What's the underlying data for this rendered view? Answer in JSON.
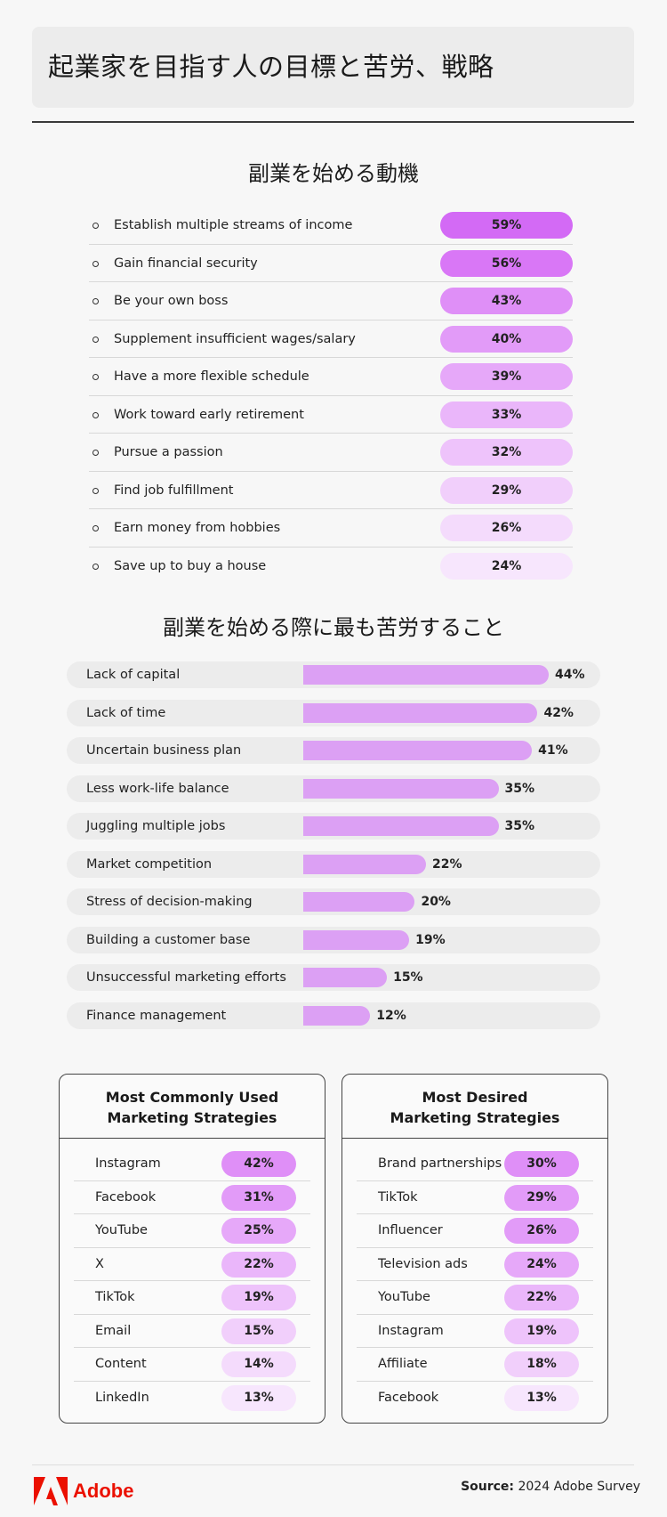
{
  "header": {
    "title": "起業家を目指す人の目標と苦労、戦略"
  },
  "motivations": {
    "title": "副業を始める動機",
    "items": [
      {
        "label": "Establish multiple streams of income",
        "value": "59%",
        "color": "#d36af5"
      },
      {
        "label": "Gain financial security",
        "value": "56%",
        "color": "#d977f6"
      },
      {
        "label": "Be your own boss",
        "value": "43%",
        "color": "#df8ff7"
      },
      {
        "label": "Supplement insufficient wages/salary",
        "value": "40%",
        "color": "#e29bf8"
      },
      {
        "label": "Have a more flexible schedule",
        "value": "39%",
        "color": "#e6a8f9"
      },
      {
        "label": "Work toward early retirement",
        "value": "33%",
        "color": "#eab6fa"
      },
      {
        "label": "Pursue a passion",
        "value": "32%",
        "color": "#eec3fb"
      },
      {
        "label": "Find job fulfillment",
        "value": "29%",
        "color": "#f1cffb"
      },
      {
        "label": "Earn money from hobbies",
        "value": "26%",
        "color": "#f4dbfc"
      },
      {
        "label": "Save up to buy a house",
        "value": "24%",
        "color": "#f7e6fd"
      }
    ]
  },
  "challenges": {
    "title": "副業を始める際に最も苦労すること",
    "bar_color": "#dca0f4"
  },
  "chart_data": {
    "type": "bar",
    "title": "副業を始める際に最も苦労すること",
    "categories": [
      "Lack of capital",
      "Lack of time",
      "Uncertain business plan",
      "Less work-life balance",
      "Juggling multiple jobs",
      "Market competition",
      "Stress of decision-making",
      "Building a customer base",
      "Unsuccessful marketing efforts",
      "Finance management"
    ],
    "values": [
      44,
      42,
      41,
      35,
      35,
      22,
      20,
      19,
      15,
      12
    ],
    "labels": [
      "44%",
      "42%",
      "41%",
      "35%",
      "35%",
      "22%",
      "20%",
      "19%",
      "15%",
      "12%"
    ],
    "orientation": "horizontal"
  },
  "cards": {
    "used": {
      "title_line1": "Most Commonly Used",
      "title_line2": "Marketing Strategies",
      "items": [
        {
          "label": "Instagram",
          "value": "42%",
          "color": "#df8ff7"
        },
        {
          "label": "Facebook",
          "value": "31%",
          "color": "#e29bf8"
        },
        {
          "label": "YouTube",
          "value": "25%",
          "color": "#e6a8f9"
        },
        {
          "label": "X",
          "value": "22%",
          "color": "#eab6fa"
        },
        {
          "label": "TikTok",
          "value": "19%",
          "color": "#eec3fb"
        },
        {
          "label": "Email",
          "value": "15%",
          "color": "#f1cffb"
        },
        {
          "label": "Content",
          "value": "14%",
          "color": "#f4dbfc"
        },
        {
          "label": "LinkedIn",
          "value": "13%",
          "color": "#f7e6fd"
        }
      ]
    },
    "desired": {
      "title_line1": "Most Desired",
      "title_line2": "Marketing Strategies",
      "items": [
        {
          "label": "Brand partnerships",
          "value": "30%",
          "color": "#df8ff7"
        },
        {
          "label": "TikTok",
          "value": "29%",
          "color": "#e29bf8"
        },
        {
          "label": "Influencer",
          "value": "26%",
          "color": "#e29bf8"
        },
        {
          "label": "Television ads",
          "value": "24%",
          "color": "#e6a8f9"
        },
        {
          "label": "YouTube",
          "value": "22%",
          "color": "#eab6fa"
        },
        {
          "label": "Instagram",
          "value": "19%",
          "color": "#eec3fb"
        },
        {
          "label": "Affiliate",
          "value": "18%",
          "color": "#f1cffb"
        },
        {
          "label": "Facebook",
          "value": "13%",
          "color": "#f7e6fd"
        }
      ]
    }
  },
  "footer": {
    "brand": "Adobe",
    "brand_color": "#eb1000",
    "source_label": "Source:",
    "source_text": "2024 Adobe Survey"
  }
}
